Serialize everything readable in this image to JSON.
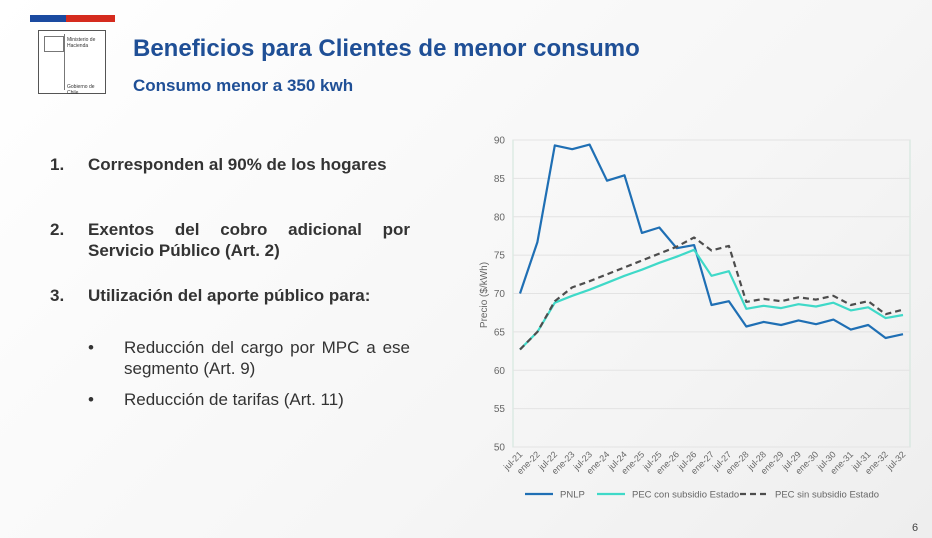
{
  "header": {
    "logo_line1": "Ministerio de",
    "logo_line2": "Hacienda",
    "logo_footer": "Gobierno de Chile",
    "title": "Beneficios para Clientes de menor consumo",
    "subtitle": "Consumo menor a 350 kwh"
  },
  "body": {
    "items": [
      {
        "number": "1.",
        "text": "Corresponden al 90% de los hogares"
      },
      {
        "number": "2.",
        "text": "Exentos del cobro adicional por Servicio Público (Art. 2)"
      },
      {
        "number": "3.",
        "text": "Utilización del aporte público para:",
        "bullets": [
          "Reducción del cargo por MPC a ese segmento (Art. 9)",
          "Reducción de tarifas (Art. 11)"
        ]
      }
    ]
  },
  "chart_data": {
    "type": "line",
    "y_label": "Precio ($/kWh)",
    "categories": [
      "jul-21",
      "ene-22",
      "jul-22",
      "ene-23",
      "jul-23",
      "ene-24",
      "jul-24",
      "ene-25",
      "jul-25",
      "ene-26",
      "jul-26",
      "ene-27",
      "jul-27",
      "ene-28",
      "jul-28",
      "ene-29",
      "jul-29",
      "ene-30",
      "jul-30",
      "ene-31",
      "jul-31",
      "ene-32",
      "jul-32"
    ],
    "series": [
      {
        "name": "PNLP",
        "color": "#1f6fb4",
        "style": "solid",
        "values": [
          70,
          76.7,
          89.3,
          88.8,
          89.4,
          84.7,
          85.4,
          77.9,
          78.6,
          75.9,
          76.3,
          68.5,
          69,
          65.7,
          66.3,
          65.9,
          66.5,
          66,
          66.6,
          65.3,
          65.9,
          64.2,
          64.7
        ]
      },
      {
        "name": "PEC con subsidio Estado",
        "color": "#3fd9c8",
        "style": "solid",
        "values": [
          62.7,
          65,
          68.8,
          69.7,
          70.5,
          71.4,
          72.3,
          73.1,
          74,
          74.8,
          75.7,
          72.3,
          72.9,
          68,
          68.4,
          68.1,
          68.6,
          68.3,
          68.8,
          67.8,
          68.2,
          66.8,
          67.2
        ]
      },
      {
        "name": "PEC sin subsidio Estado",
        "color": "#4d4d4d",
        "style": "dashed",
        "values": [
          62.7,
          65,
          69,
          70.8,
          71.6,
          72.5,
          73.4,
          74.3,
          75.2,
          76.1,
          77.3,
          75.6,
          76.2,
          68.9,
          69.3,
          69,
          69.5,
          69.2,
          69.7,
          68.5,
          69,
          67.3,
          67.9
        ]
      }
    ],
    "ylim": [
      50,
      90
    ],
    "yticks": [
      50,
      55,
      60,
      65,
      70,
      75,
      80,
      85,
      90
    ],
    "grid": true,
    "legend": "bottom"
  },
  "page_number": "6"
}
